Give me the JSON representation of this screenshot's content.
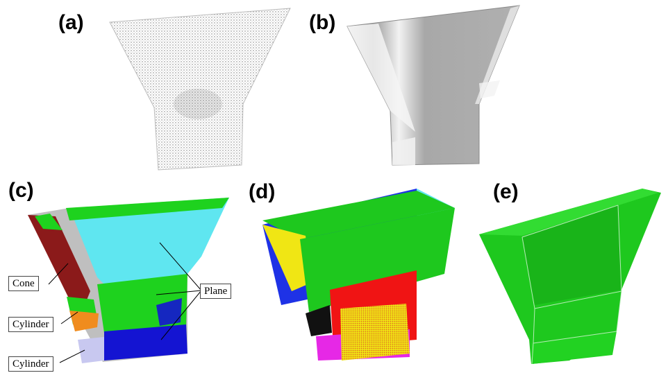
{
  "panels": {
    "a": {
      "label": "(a)"
    },
    "b": {
      "label": "(b)"
    },
    "c": {
      "label": "(c)"
    },
    "d": {
      "label": "(d)"
    },
    "e": {
      "label": "(e)"
    }
  },
  "annotations": {
    "cone": "Cone",
    "cylinder_upper": "Cylinder",
    "cylinder_lower": "Cylinder",
    "plane": "Plane"
  },
  "colors": {
    "segment_cone": "#8b1a1a",
    "segment_plane_cyan": "#5fe6f0",
    "segment_plane_green": "#1ed21e",
    "segment_cylinder_orange": "#f08c1e",
    "segment_cylinder_blue": "#1414d2",
    "fit_blue": "#1e32e6",
    "fit_yellow": "#f0e614",
    "fit_red": "#f01414",
    "fit_magenta": "#e628e6",
    "final_green": "#1ec81e"
  }
}
